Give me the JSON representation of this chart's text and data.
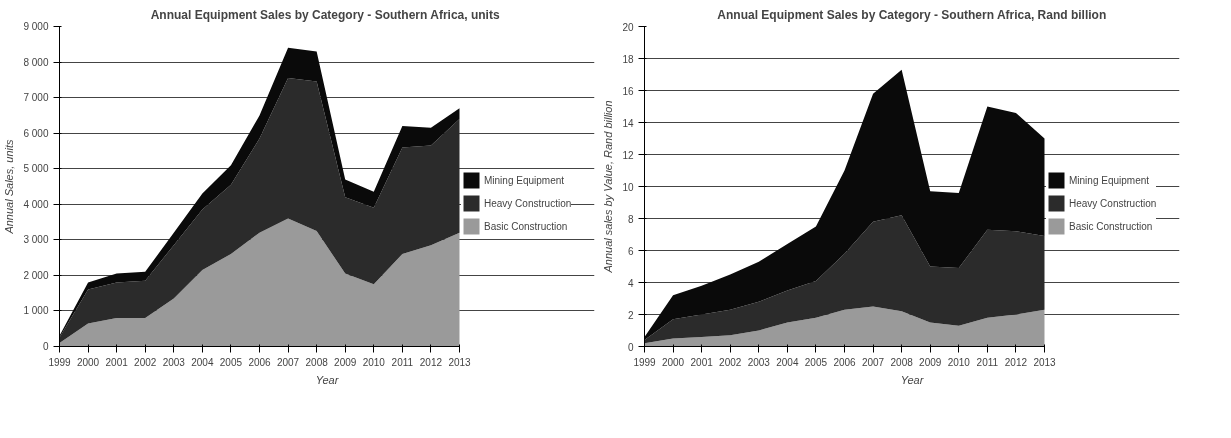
{
  "chart_data": [
    {
      "type": "area",
      "stacked": true,
      "title": "Annual Equipment Sales by Category  - Southern Africa, units",
      "xlabel": "Year",
      "ylabel": "Annual Sales, units",
      "categories": [
        "1999",
        "2000",
        "2001",
        "2002",
        "2003",
        "2004",
        "2005",
        "2006",
        "2007",
        "2008",
        "2009",
        "2010",
        "2011",
        "2012",
        "2013"
      ],
      "series": [
        {
          "name": "Basic Construction",
          "color": "#9a9a9a",
          "values": [
            100,
            650,
            800,
            800,
            1350,
            2150,
            2600,
            3200,
            3600,
            3250,
            2050,
            1750,
            2600,
            2850,
            3200
          ]
        },
        {
          "name": "Heavy Construction",
          "color": "#2b2b2b",
          "values": [
            150,
            950,
            1000,
            1050,
            1500,
            1700,
            1950,
            2650,
            3950,
            4200,
            2150,
            2150,
            3000,
            2800,
            3200
          ]
        },
        {
          "name": "Mining Equipment",
          "color": "#0a0a0a",
          "values": [
            50,
            200,
            250,
            250,
            350,
            450,
            550,
            650,
            850,
            850,
            500,
            450,
            600,
            500,
            300
          ]
        }
      ],
      "ylim": [
        0,
        9000
      ],
      "yticks": [
        0,
        {
          "value": 1000,
          "label": "1 000"
        },
        {
          "value": 2000,
          "label": "2 000"
        },
        {
          "value": 3000,
          "label": "3 000"
        },
        {
          "value": 4000,
          "label": "4 000"
        },
        {
          "value": 5000,
          "label": "5 000"
        },
        {
          "value": 6000,
          "label": "6 000"
        },
        {
          "value": 7000,
          "label": "7 000"
        },
        {
          "value": 8000,
          "label": "8 000"
        },
        {
          "value": 9000,
          "label": "9 000"
        }
      ],
      "grid": "y",
      "legend": "right"
    },
    {
      "type": "area",
      "stacked": true,
      "title": "Annual Equipment Sales by Category - Southern Africa, Rand billion",
      "xlabel": "Year",
      "ylabel": "Annual sales by Value, Rand billion",
      "categories": [
        "1999",
        "2000",
        "2001",
        "2002",
        "2003",
        "2004",
        "2005",
        "2006",
        "2007",
        "2008",
        "2009",
        "2010",
        "2011",
        "2012",
        "2013"
      ],
      "series": [
        {
          "name": "Basic Construction",
          "color": "#9a9a9a",
          "values": [
            0.2,
            0.5,
            0.6,
            0.7,
            1.0,
            1.5,
            1.8,
            2.3,
            2.5,
            2.2,
            1.5,
            1.3,
            1.8,
            2.0,
            2.3
          ]
        },
        {
          "name": "Heavy Construction",
          "color": "#2b2b2b",
          "values": [
            0.2,
            1.2,
            1.4,
            1.6,
            1.8,
            2.0,
            2.3,
            3.5,
            5.3,
            6.0,
            3.5,
            3.6,
            5.5,
            5.2,
            4.6
          ]
        },
        {
          "name": "Mining Equipment",
          "color": "#0a0a0a",
          "values": [
            0.2,
            1.5,
            1.8,
            2.2,
            2.5,
            2.9,
            3.4,
            5.2,
            8.0,
            9.1,
            4.7,
            4.7,
            7.7,
            7.4,
            6.1
          ]
        }
      ],
      "ylim": [
        0,
        20
      ],
      "yticks": [
        0,
        2,
        4,
        6,
        8,
        10,
        12,
        14,
        16,
        18,
        20
      ],
      "grid": "y",
      "legend": "right"
    }
  ]
}
